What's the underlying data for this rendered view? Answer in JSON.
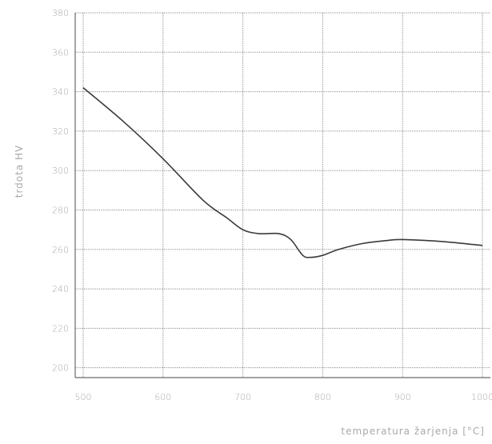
{
  "chart_data": {
    "type": "line",
    "title": "",
    "xlabel": "temperatura žarjenja [°C]",
    "ylabel": "trdota HV",
    "x_ticks": [
      "500",
      "600",
      "700",
      "800",
      "900",
      "1000"
    ],
    "y_ticks": [
      "200",
      "220",
      "240",
      "260",
      "280",
      "300",
      "320",
      "340",
      "360",
      "380"
    ],
    "xlim": [
      490,
      1010
    ],
    "ylim": [
      195,
      380
    ],
    "grid": true,
    "series": [
      {
        "values": [
          [
            500,
            342
          ],
          [
            550,
            325
          ],
          [
            600,
            306
          ],
          [
            650,
            285
          ],
          [
            680,
            276
          ],
          [
            700,
            270
          ],
          [
            720,
            268
          ],
          [
            745,
            268
          ],
          [
            760,
            265
          ],
          [
            775,
            257
          ],
          [
            785,
            256
          ],
          [
            800,
            257
          ],
          [
            820,
            260
          ],
          [
            850,
            263
          ],
          [
            880,
            264.5
          ],
          [
            900,
            265
          ],
          [
            950,
            264
          ],
          [
            1000,
            262
          ]
        ]
      }
    ],
    "line_color": "#3a3a3a"
  }
}
